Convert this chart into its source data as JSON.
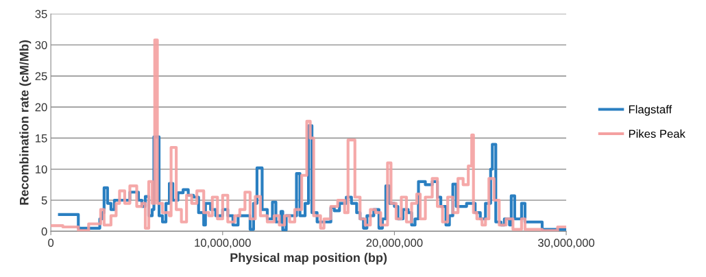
{
  "chart_data": {
    "type": "step",
    "xlabel": "Physical map position (bp)",
    "ylabel": "Recombination rate (cM/Mb)",
    "xlim": [
      0,
      30000000
    ],
    "xticks": [
      {
        "value": 0,
        "label": "0"
      },
      {
        "value": 10000000,
        "label": "10,000,000"
      },
      {
        "value": 20000000,
        "label": "20,000,000"
      },
      {
        "value": 30000000,
        "label": "30,000,000"
      }
    ],
    "ylim": [
      0,
      35
    ],
    "yticks": [
      0,
      5,
      10,
      15,
      20,
      25,
      30,
      35
    ],
    "grid": "y",
    "legend": "right",
    "line_style": "solid",
    "marker": "none",
    "series": [
      {
        "name": "Flagstaff",
        "color": "#2a7fc1",
        "x": [
          500000,
          1600000,
          2850000,
          3000000,
          3100000,
          3300000,
          3500000,
          3700000,
          4300000,
          4600000,
          5100000,
          5300000,
          5500000,
          5700000,
          5900000,
          6000000,
          6300000,
          6500000,
          6700000,
          6900000,
          7100000,
          7400000,
          7700000,
          8000000,
          8300000,
          8600000,
          8900000,
          9000000,
          9300000,
          9600000,
          10000000,
          10300000,
          10600000,
          10900000,
          11400000,
          11600000,
          11800000,
          12000000,
          12300000,
          12600000,
          12900000,
          13100000,
          13400000,
          13500000,
          13700000,
          14100000,
          14300000,
          14500000,
          14800000,
          15000000,
          15200000,
          15500000,
          16300000,
          16500000,
          16800000,
          17200000,
          17500000,
          17800000,
          18000000,
          18200000,
          18400000,
          18800000,
          19100000,
          19300000,
          19500000,
          19700000,
          20000000,
          20200000,
          20500000,
          20800000,
          21000000,
          21200000,
          21400000,
          21800000,
          22200000,
          22500000,
          22700000,
          23000000,
          23200000,
          23400000,
          23600000,
          24200000,
          24700000,
          25000000,
          25300000,
          25600000,
          25700000,
          25900000,
          26200000,
          26400000,
          26700000,
          26800000,
          27000000,
          27400000,
          27600000,
          28600000,
          30000000
        ],
        "values": [
          2.7,
          0.5,
          2.0,
          3.0,
          7.0,
          4.5,
          3.5,
          5.0,
          5.0,
          6.3,
          5.0,
          4.0,
          5.6,
          2.5,
          3.5,
          15.2,
          2.5,
          1.5,
          4.5,
          7.7,
          5.0,
          6.2,
          6.7,
          5.8,
          5.5,
          3.0,
          1.0,
          4.5,
          3.5,
          2.5,
          3.5,
          2.5,
          1.0,
          2.5,
          2.5,
          0.3,
          4.5,
          10.2,
          3.5,
          2.0,
          4.7,
          1.5,
          3.2,
          0.2,
          2.5,
          2.5,
          9.3,
          2.5,
          4.5,
          17.0,
          3.0,
          1.5,
          3.8,
          3.3,
          4.5,
          5.5,
          4.5,
          3.0,
          2.0,
          0.5,
          2.5,
          3.5,
          0.5,
          2.0,
          7.3,
          4.5,
          4.0,
          2.0,
          3.5,
          3.0,
          1.0,
          2.0,
          8.0,
          7.5,
          8.0,
          5.5,
          4.0,
          1.0,
          2.5,
          7.6,
          4.0,
          4.5,
          3.0,
          2.0,
          4.5,
          10.0,
          14.0,
          1.5,
          1.0,
          2.0,
          1.0,
          5.7,
          2.0,
          4.5,
          1.5,
          0.3,
          0.3
        ]
      },
      {
        "name": "Pikes Peak",
        "color": "#f4a0a0",
        "x": [
          0,
          700000,
          1600000,
          2200000,
          2900000,
          3100000,
          3500000,
          3800000,
          4000000,
          4300000,
          4600000,
          5000000,
          5300000,
          5500000,
          5700000,
          5900000,
          6050000,
          6200000,
          6500000,
          6900000,
          7000000,
          7300000,
          7600000,
          7900000,
          8200000,
          8500000,
          8900000,
          9200000,
          9400000,
          9700000,
          10000000,
          10300000,
          10700000,
          11000000,
          11300000,
          11600000,
          11900000,
          12200000,
          12600000,
          13000000,
          13300000,
          13600000,
          13900000,
          14200000,
          14600000,
          14900000,
          15100000,
          15300000,
          15700000,
          15900000,
          16300000,
          16700000,
          17100000,
          17300000,
          17700000,
          18000000,
          18300000,
          18600000,
          18900000,
          19200000,
          19600000,
          19800000,
          20100000,
          20400000,
          20700000,
          21000000,
          21300000,
          21500000,
          21800000,
          22200000,
          22500000,
          22800000,
          23100000,
          23400000,
          23700000,
          24000000,
          24300000,
          24500000,
          24600000,
          24800000,
          25100000,
          25300000,
          25500000,
          25800000,
          26100000,
          26500000,
          26900000,
          27400000,
          27600000,
          28600000,
          29500000,
          30000000
        ],
        "values": [
          0.9,
          0.7,
          0.1,
          1.2,
          3.5,
          1.0,
          2.5,
          4.5,
          6.5,
          4.5,
          7.3,
          4.0,
          4.5,
          0.5,
          8.0,
          4.5,
          30.8,
          4.5,
          3.0,
          2.5,
          13.5,
          3.5,
          1.5,
          5.8,
          4.5,
          6.5,
          3.0,
          2.5,
          5.5,
          2.0,
          5.8,
          1.5,
          2.5,
          3.5,
          6.3,
          2.0,
          5.6,
          2.5,
          1.5,
          2.5,
          1.0,
          2.5,
          1.5,
          3.5,
          9.0,
          17.7,
          15.0,
          2.5,
          0.5,
          2.0,
          4.0,
          5.0,
          3.0,
          14.7,
          5.5,
          2.0,
          1.0,
          3.5,
          3.0,
          1.0,
          11.0,
          4.5,
          2.0,
          5.5,
          1.5,
          4.5,
          6.0,
          2.0,
          5.5,
          8.5,
          4.0,
          1.5,
          5.5,
          3.0,
          8.5,
          7.5,
          10.5,
          15.5,
          3.0,
          2.0,
          1.0,
          2.0,
          8.5,
          5.0,
          1.0,
          2.0,
          0.3,
          2.0,
          0.3,
          0.1,
          0.7,
          0.7
        ]
      }
    ]
  }
}
